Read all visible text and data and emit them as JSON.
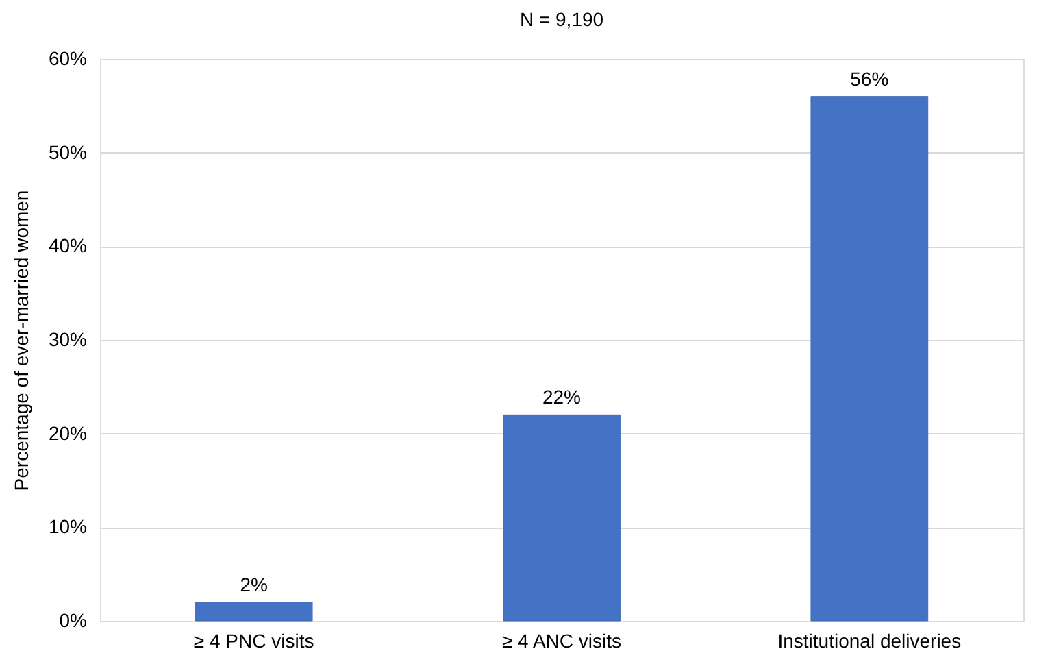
{
  "chart_data": {
    "type": "bar",
    "title": "N = 9,190",
    "ylabel": "Percentage of ever-married women",
    "categories": [
      "≥ 4 PNC visits",
      "≥ 4 ANC visits",
      "Institutional deliveries"
    ],
    "values": [
      2,
      22,
      56
    ],
    "color": "#4472c4",
    "value_labels": [
      "2%",
      "22%",
      "56%"
    ],
    "ylim": [
      0,
      60
    ],
    "yticks": [
      {
        "value": 0,
        "label": "0%"
      },
      {
        "value": 10,
        "label": "10%"
      },
      {
        "value": 20,
        "label": "20%"
      },
      {
        "value": 30,
        "label": "30%"
      },
      {
        "value": 40,
        "label": "40%"
      },
      {
        "value": 50,
        "label": "50%"
      },
      {
        "value": 60,
        "label": "60%"
      }
    ],
    "grid": "y"
  }
}
